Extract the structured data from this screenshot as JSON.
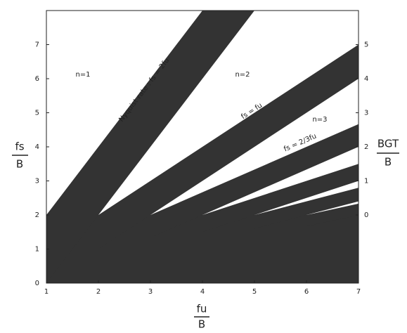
{
  "chart_data": {
    "type": "area",
    "xlabel": {
      "numerator": "fu",
      "denominator": "B"
    },
    "ylabel": {
      "numerator": "fs",
      "denominator": "B"
    },
    "y2label": {
      "numerator": "BGT",
      "denominator": "B"
    },
    "xlim": [
      1,
      7
    ],
    "xticks": [
      1,
      2,
      3,
      4,
      5,
      6,
      7
    ],
    "ylim": [
      0,
      8
    ],
    "yticks": [
      0,
      1,
      2,
      3,
      4,
      5,
      6,
      7
    ],
    "y2lim": [
      -2,
      6
    ],
    "y2ticks": [
      0,
      1,
      2,
      3,
      4,
      5
    ],
    "color": "#333333",
    "series": [
      {
        "x": [
          1,
          7
        ],
        "lower": [
          0,
          0
        ],
        "upper": [
          2,
          2
        ]
      },
      {
        "x": [
          1,
          4,
          5
        ],
        "lower": [
          0,
          6,
          8
        ],
        "upper": [
          2,
          8,
          8
        ]
      },
      {
        "x": [
          2,
          7
        ],
        "lower": [
          1,
          6
        ],
        "upper": [
          2,
          7
        ]
      },
      {
        "x": [
          3,
          7
        ],
        "lower": [
          1.333,
          4
        ],
        "upper": [
          2,
          4.667
        ]
      },
      {
        "x": [
          4,
          7
        ],
        "lower": [
          1.5,
          3
        ],
        "upper": [
          2,
          3.5
        ]
      },
      {
        "x": [
          5,
          7
        ],
        "lower": [
          1.6,
          2.4
        ],
        "upper": [
          2,
          2.8
        ]
      },
      {
        "x": [
          6,
          7
        ],
        "lower": [
          1.667,
          2
        ],
        "upper": [
          2,
          2.333
        ]
      }
    ],
    "annotations": [
      "n=1",
      "n=2",
      "n=3",
      "Nyquist rate : fs = 2fu",
      "fs = fu",
      "fs = 2/3fu"
    ]
  }
}
